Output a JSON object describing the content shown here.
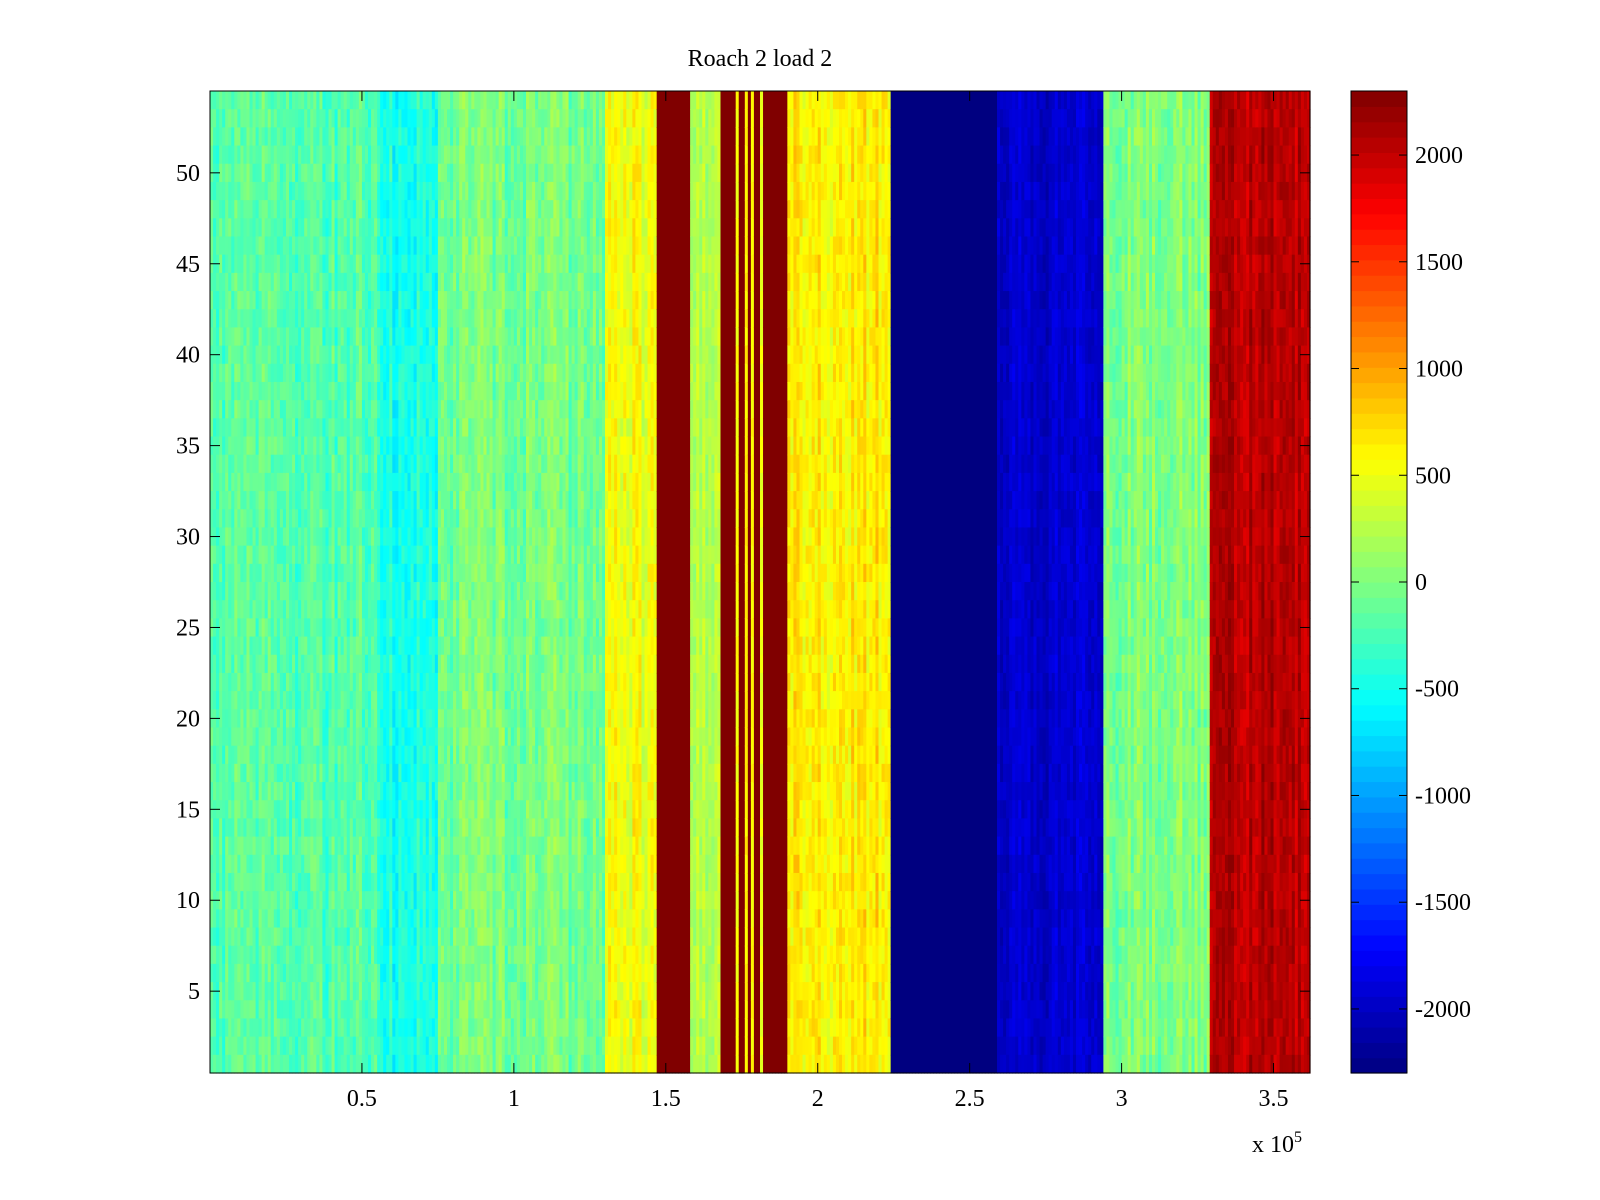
{
  "chart_data": {
    "type": "heatmap",
    "title": "Roach 2 load 2",
    "xlabel": "",
    "ylabel": "",
    "x_exponent_label": "x 10",
    "x_exponent_power": "5",
    "xlim": [
      0,
      3.62
    ],
    "ylim": [
      0.5,
      54.5
    ],
    "x_ticks": [
      0.5,
      1,
      1.5,
      2,
      2.5,
      3,
      3.5
    ],
    "x_tick_labels": [
      "0.5",
      "1",
      "1.5",
      "2",
      "2.5",
      "3",
      "3.5"
    ],
    "y_ticks": [
      5,
      10,
      15,
      20,
      25,
      30,
      35,
      40,
      45,
      50
    ],
    "y_tick_labels": [
      "5",
      "10",
      "15",
      "20",
      "25",
      "30",
      "35",
      "40",
      "45",
      "50"
    ],
    "rows": 54,
    "colormap": "jet",
    "clim": [
      -2300,
      2300
    ],
    "colorbar_ticks": [
      -2000,
      -1500,
      -1000,
      -500,
      0,
      500,
      1000,
      1500,
      2000
    ],
    "colorbar_tick_labels": [
      "-2000",
      "-1500",
      "-1000",
      "-500",
      "0",
      "500",
      "1000",
      "1500",
      "2000"
    ],
    "bands": [
      {
        "x0": 0.0,
        "x1": 0.55,
        "mean": -200,
        "noise": 380
      },
      {
        "x0": 0.55,
        "x1": 0.75,
        "mean": -450,
        "noise": 380
      },
      {
        "x0": 0.75,
        "x1": 1.3,
        "mean": -50,
        "noise": 380
      },
      {
        "x0": 1.3,
        "x1": 1.47,
        "mean": 500,
        "noise": 380
      },
      {
        "x0": 1.47,
        "x1": 1.58,
        "mean": 2300,
        "noise": 0
      },
      {
        "x0": 1.58,
        "x1": 1.68,
        "mean": 250,
        "noise": 300
      },
      {
        "x0": 1.68,
        "x1": 1.73,
        "mean": 2300,
        "noise": 0
      },
      {
        "x0": 1.73,
        "x1": 1.74,
        "mean": 500,
        "noise": 200
      },
      {
        "x0": 1.74,
        "x1": 1.76,
        "mean": 2300,
        "noise": 0
      },
      {
        "x0": 1.76,
        "x1": 1.77,
        "mean": 600,
        "noise": 200
      },
      {
        "x0": 1.77,
        "x1": 1.78,
        "mean": 2300,
        "noise": 0
      },
      {
        "x0": 1.78,
        "x1": 1.79,
        "mean": 500,
        "noise": 200
      },
      {
        "x0": 1.79,
        "x1": 1.81,
        "mean": 2300,
        "noise": 0
      },
      {
        "x0": 1.81,
        "x1": 1.82,
        "mean": 500,
        "noise": 200
      },
      {
        "x0": 1.82,
        "x1": 1.83,
        "mean": 2300,
        "noise": 0
      },
      {
        "x0": 1.83,
        "x1": 1.83,
        "mean": 500,
        "noise": 200
      },
      {
        "x0": 1.83,
        "x1": 1.9,
        "mean": 2300,
        "noise": 0
      },
      {
        "x0": 1.9,
        "x1": 2.24,
        "mean": 650,
        "noise": 380
      },
      {
        "x0": 2.24,
        "x1": 2.59,
        "mean": -2300,
        "noise": 0
      },
      {
        "x0": 2.59,
        "x1": 2.94,
        "mean": -1950,
        "noise": 250
      },
      {
        "x0": 2.94,
        "x1": 3.29,
        "mean": 0,
        "noise": 380
      },
      {
        "x0": 3.29,
        "x1": 3.62,
        "mean": 2050,
        "noise": 300
      }
    ]
  }
}
